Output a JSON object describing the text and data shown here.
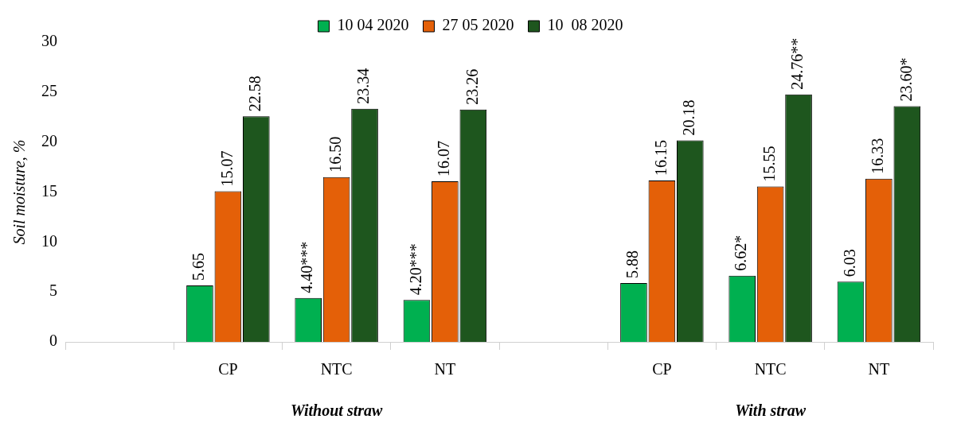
{
  "chart_data": {
    "type": "bar",
    "ylabel": "Soil moisture, %",
    "categories": [
      null,
      "CP",
      "NTC",
      "NT",
      null,
      "CP",
      "NTC",
      "NT"
    ],
    "series": [
      {
        "name": "10 04 2020",
        "color": "#00b050",
        "values": [
          null,
          5.65,
          4.4,
          4.2,
          null,
          5.88,
          6.62,
          6.03
        ],
        "value_labels": [
          null,
          "5.65",
          "4.40***",
          "4.20***",
          null,
          "5.88",
          "6.62*",
          "6.03"
        ]
      },
      {
        "name": "27 05 2020",
        "color": "#e46008",
        "values": [
          null,
          15.07,
          16.5,
          16.07,
          null,
          16.15,
          15.55,
          16.33
        ],
        "value_labels": [
          null,
          "15.07",
          "16.50",
          "16.07",
          null,
          "16.15",
          "15.55",
          "16.33"
        ]
      },
      {
        "name": "10  08 2020",
        "color": "#1e561e",
        "values": [
          null,
          22.58,
          23.34,
          23.26,
          null,
          20.18,
          24.76,
          23.6
        ],
        "value_labels": [
          null,
          "22.58",
          "23.34",
          "23.26",
          null,
          "20.18",
          "24.76**",
          "23.60*"
        ]
      }
    ],
    "ylim": [
      0,
      30
    ],
    "yticks": [
      0,
      5,
      10,
      15,
      20,
      25,
      30
    ],
    "grid": false,
    "legend": "top",
    "annotations": [
      "Without straw",
      "With straw"
    ]
  }
}
